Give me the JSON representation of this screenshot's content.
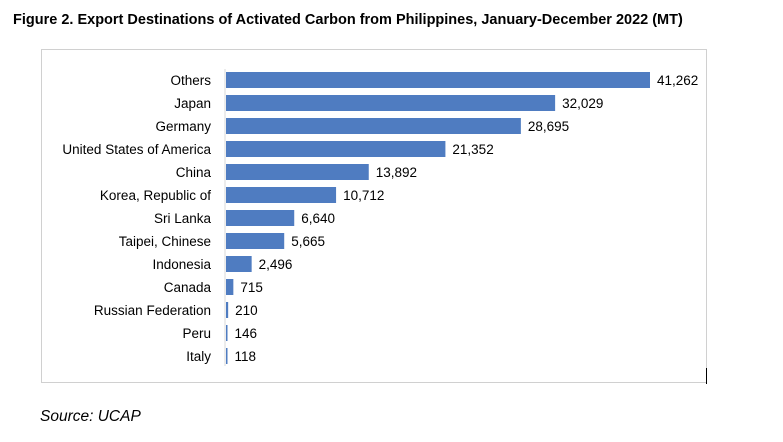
{
  "figure_title": "Figure 2. Export Destinations of Activated Carbon from Philippines, January-December 2022 (MT)",
  "source": "Source: UCAP",
  "colors": {
    "bar": "#4f7cc1"
  },
  "chart_data": {
    "type": "bar",
    "orientation": "horizontal",
    "title": "Figure 2. Export Destinations of Activated Carbon from Philippines, January-December 2022 (MT)",
    "categories": [
      "Others",
      "Japan",
      "Germany",
      "United States of America",
      "China",
      "Korea, Republic of",
      "Sri Lanka",
      "Taipei, Chinese",
      "Indonesia",
      "Canada",
      "Russian Federation",
      "Peru",
      "Italy"
    ],
    "values": [
      41262,
      32029,
      28695,
      21352,
      13892,
      10712,
      6640,
      5665,
      2496,
      715,
      210,
      146,
      118
    ],
    "value_labels": [
      "41,262",
      "32,029",
      "28,695",
      "21,352",
      "13,892",
      "10,712",
      "6,640",
      "5,665",
      "2,496",
      "715",
      "210",
      "146",
      "118"
    ],
    "xlim": [
      0,
      41262
    ],
    "grid": false,
    "legend": "none"
  }
}
